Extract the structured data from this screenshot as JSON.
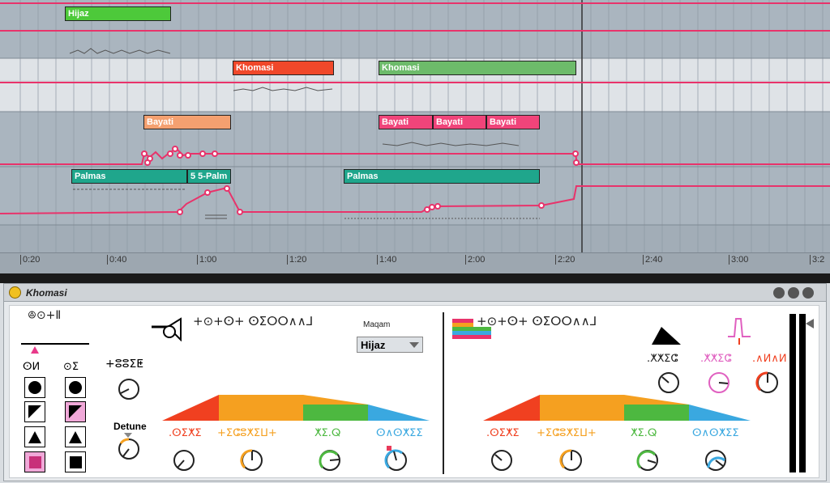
{
  "arrangement": {
    "clips": {
      "hijaz": "Hijaz",
      "khomasi_a": "Khomasi",
      "khomasi_b": "Khomasi",
      "bayati_a": "Bayati",
      "bayati_b": "Bayati",
      "bayati_c": "Bayati",
      "bayati_d": "Bayati",
      "palmas_a": "Palmas",
      "palmas_b": "5 5-Palm",
      "palmas_c": "Palmas"
    },
    "ruler_ticks": [
      "0:20",
      "0:40",
      "1:00",
      "1:20",
      "1:40",
      "2:00",
      "2:20",
      "2:40",
      "3:00",
      "3:2"
    ]
  },
  "device": {
    "title": "Khomasi",
    "maqam_label": "Maqam",
    "maqam_value": "Hijaz",
    "detune_label": "Detune",
    "glyph_top_left": "ꔮ⊙+Ⅱ",
    "glyph_col_a": "ⵙⵍ",
    "glyph_col_b": "⊙ⵉ",
    "glyph_knob_top": "+ⵓⵓⵉⵟ",
    "glyph_osc_left": "+⊙+ⵙ+  ⵙⵉⵔⵔ∧∧⅃",
    "glyph_osc_right": "+⊙+ⵙ+  ⵙⵉⵔⵔ∧∧⅃",
    "env_left": [
      ".ⵙⵉⵅⵉ",
      "+ⵉⵛⵓⵅⵉⵡ+",
      "ⵅⵉ.ⵕ",
      "ⵙ∧ⵙⵅⵉⵉ"
    ],
    "env_right": [
      ".ⵙⵉⵅⵉ",
      "+ⵉⵛⵓⵅⵉⵡ+",
      "ⵅⵉ.ⵕ",
      "ⵙ∧ⵙⵅⵉⵉ"
    ],
    "filter_labels": [
      ".ⵅⵅⵉⵛ",
      ".ⵅⵅⵉⵛ",
      ".∧ⵍ∧ⵍ"
    ]
  },
  "colors": {
    "automation": "#e8336b",
    "hijaz": "#4dc93a",
    "khomasi_a": "#f0482a",
    "khomasi_b": "#6dbb6a",
    "bayati_a": "#f4a070",
    "bayati_bcd": "#f0447a",
    "palmas": "#1fa68c",
    "env_red": "#f04020",
    "env_orange": "#f5a020",
    "env_green": "#4db840",
    "env_blue": "#3aa8e0"
  }
}
